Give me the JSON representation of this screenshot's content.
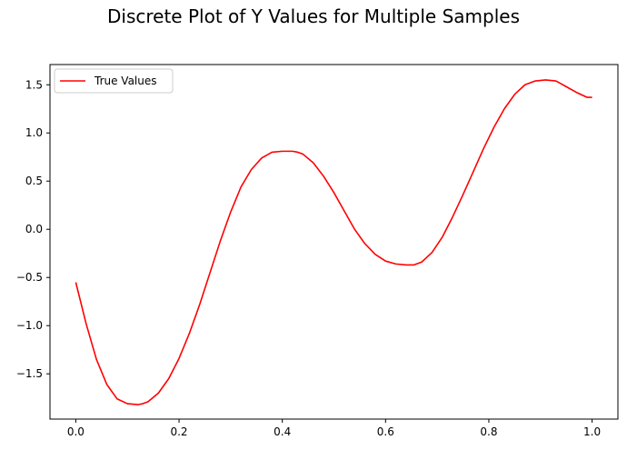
{
  "chart_data": {
    "type": "line",
    "title": "Discrete Plot of Y Values for Multiple Samples",
    "xlabel": "",
    "ylabel": "",
    "xlim": [
      -0.05,
      1.05
    ],
    "ylim": [
      -1.97,
      1.71
    ],
    "xticks": [
      0.0,
      0.2,
      0.4,
      0.6,
      0.8,
      1.0
    ],
    "xtick_labels": [
      "0.0",
      "0.2",
      "0.4",
      "0.6",
      "0.8",
      "1.0"
    ],
    "yticks": [
      -1.5,
      -1.0,
      -0.5,
      0.0,
      0.5,
      1.0,
      1.5
    ],
    "ytick_labels": [
      "−1.5",
      "−1.0",
      "−0.5",
      "0.0",
      "0.5",
      "1.0",
      "1.5"
    ],
    "grid": false,
    "legend": {
      "placement": "upper-left"
    },
    "series": [
      {
        "name": "True Values",
        "color": "#ff0000",
        "x": [
          0.0,
          0.02,
          0.04,
          0.06,
          0.08,
          0.1,
          0.12,
          0.13,
          0.14,
          0.16,
          0.18,
          0.2,
          0.22,
          0.24,
          0.26,
          0.28,
          0.3,
          0.32,
          0.34,
          0.36,
          0.38,
          0.4,
          0.42,
          0.43,
          0.44,
          0.46,
          0.48,
          0.5,
          0.52,
          0.54,
          0.56,
          0.58,
          0.6,
          0.62,
          0.64,
          0.655,
          0.67,
          0.69,
          0.71,
          0.73,
          0.75,
          0.77,
          0.79,
          0.81,
          0.83,
          0.85,
          0.87,
          0.89,
          0.91,
          0.93,
          0.94,
          0.95,
          0.97,
          0.99,
          1.0
        ],
        "y": [
          -0.55,
          -0.98,
          -1.35,
          -1.61,
          -1.76,
          -1.81,
          -1.82,
          -1.81,
          -1.79,
          -1.7,
          -1.55,
          -1.34,
          -1.08,
          -0.78,
          -0.45,
          -0.12,
          0.18,
          0.44,
          0.62,
          0.74,
          0.8,
          0.81,
          0.81,
          0.8,
          0.78,
          0.69,
          0.55,
          0.38,
          0.19,
          0.0,
          -0.15,
          -0.26,
          -0.33,
          -0.36,
          -0.37,
          -0.37,
          -0.34,
          -0.24,
          -0.08,
          0.13,
          0.36,
          0.6,
          0.84,
          1.06,
          1.25,
          1.4,
          1.5,
          1.54,
          1.55,
          1.54,
          1.51,
          1.48,
          1.42,
          1.37,
          1.37
        ]
      }
    ]
  }
}
